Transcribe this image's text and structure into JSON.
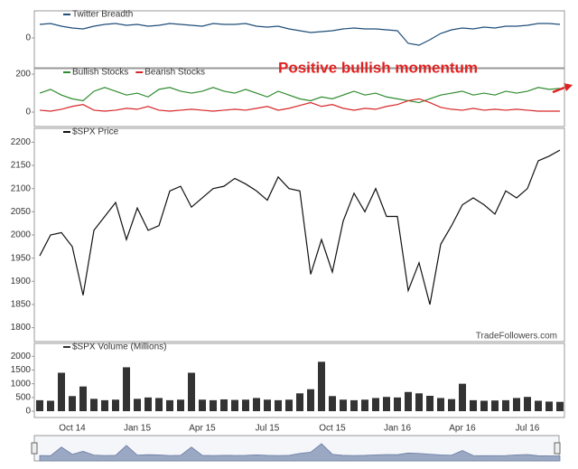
{
  "chart_data": [
    {
      "type": "line",
      "ylim": [
        -3.3,
        3
      ],
      "yticks": [
        0
      ],
      "series": [
        {
          "name": "Twitter Breadth",
          "color": "#1f4e79",
          "values": [
            1.5,
            1.6,
            1.3,
            1.1,
            1.0,
            1.3,
            1.5,
            1.6,
            1.4,
            1.5,
            1.3,
            1.4,
            1.6,
            1.5,
            1.4,
            1.3,
            1.6,
            1.5,
            1.5,
            1.6,
            1.3,
            1.2,
            1.3,
            1.0,
            0.8,
            0.6,
            0.7,
            0.8,
            1.0,
            1.1,
            1.0,
            1.0,
            0.9,
            0.8,
            -0.6,
            -0.8,
            -0.2,
            0.5,
            0.9,
            1.1,
            1.0,
            1.2,
            1.1,
            1.3,
            1.3,
            1.4,
            1.6,
            1.6,
            1.5
          ]
        }
      ]
    },
    {
      "type": "line",
      "ylim": [
        -76,
        229
      ],
      "yticks": [
        0,
        200
      ],
      "annotation": "Positive bullish momentum",
      "series": [
        {
          "name": "Bullish Stocks",
          "color": "#2e8b2e",
          "values": [
            100,
            120,
            90,
            70,
            60,
            110,
            130,
            110,
            90,
            100,
            80,
            120,
            130,
            110,
            100,
            110,
            130,
            110,
            100,
            120,
            100,
            80,
            110,
            90,
            70,
            60,
            80,
            70,
            90,
            110,
            90,
            100,
            80,
            70,
            60,
            50,
            70,
            90,
            100,
            110,
            90,
            100,
            90,
            110,
            100,
            110,
            130,
            120,
            125
          ]
        },
        {
          "name": "Bearish Stocks",
          "color": "#d62728",
          "values": [
            10,
            5,
            15,
            30,
            40,
            10,
            5,
            10,
            20,
            15,
            30,
            10,
            5,
            10,
            15,
            10,
            5,
            10,
            15,
            10,
            20,
            30,
            10,
            20,
            35,
            50,
            30,
            40,
            20,
            10,
            20,
            15,
            30,
            40,
            60,
            70,
            50,
            25,
            15,
            10,
            20,
            10,
            15,
            10,
            15,
            10,
            5,
            5,
            5
          ]
        }
      ]
    },
    {
      "type": "line",
      "ylim": [
        1770,
        2230
      ],
      "yticks": [
        1800,
        1850,
        1900,
        1950,
        2000,
        2050,
        2100,
        2150,
        2200
      ],
      "annotation": "TradeFollowers.com",
      "series": [
        {
          "name": "$SPX Price",
          "color": "#111111",
          "values": [
            1955,
            2000,
            2005,
            1975,
            1870,
            2010,
            2040,
            2070,
            1990,
            2058,
            2010,
            2020,
            2095,
            2105,
            2060,
            2080,
            2100,
            2105,
            2122,
            2110,
            2095,
            2075,
            2125,
            2100,
            2095,
            1915,
            1990,
            1920,
            2030,
            2090,
            2050,
            2100,
            2040,
            2040,
            1880,
            1940,
            1850,
            1980,
            2020,
            2065,
            2080,
            2065,
            2045,
            2095,
            2080,
            2100,
            2160,
            2170,
            2183
          ]
        }
      ]
    },
    {
      "type": "bar",
      "ylim": [
        -230,
        2470
      ],
      "yticks": [
        0,
        500,
        1000,
        1500,
        2000
      ],
      "categories": [
        null,
        null,
        null,
        "Oct 14",
        null,
        null,
        null,
        null,
        null,
        "Jan 15",
        null,
        null,
        null,
        null,
        null,
        "Apr 15",
        null,
        null,
        null,
        null,
        null,
        "Jul 15",
        null,
        null,
        null,
        null,
        null,
        "Oct 15",
        null,
        null,
        null,
        null,
        null,
        "Jan 16",
        null,
        null,
        null,
        null,
        null,
        "Apr 16",
        null,
        null,
        null,
        null,
        null,
        "Jul 16",
        null,
        null,
        null
      ],
      "series": [
        {
          "name": "$SPX Volume (Millions)",
          "color": "#333333",
          "values": [
            400,
            380,
            1400,
            550,
            900,
            450,
            400,
            420,
            1600,
            450,
            500,
            480,
            400,
            420,
            1400,
            420,
            400,
            430,
            410,
            420,
            480,
            420,
            400,
            420,
            650,
            800,
            1800,
            550,
            420,
            400,
            420,
            480,
            520,
            500,
            700,
            650,
            560,
            480,
            440,
            1000,
            400,
            380,
            390,
            400,
            480,
            520,
            380,
            350,
            340
          ]
        }
      ]
    }
  ]
}
